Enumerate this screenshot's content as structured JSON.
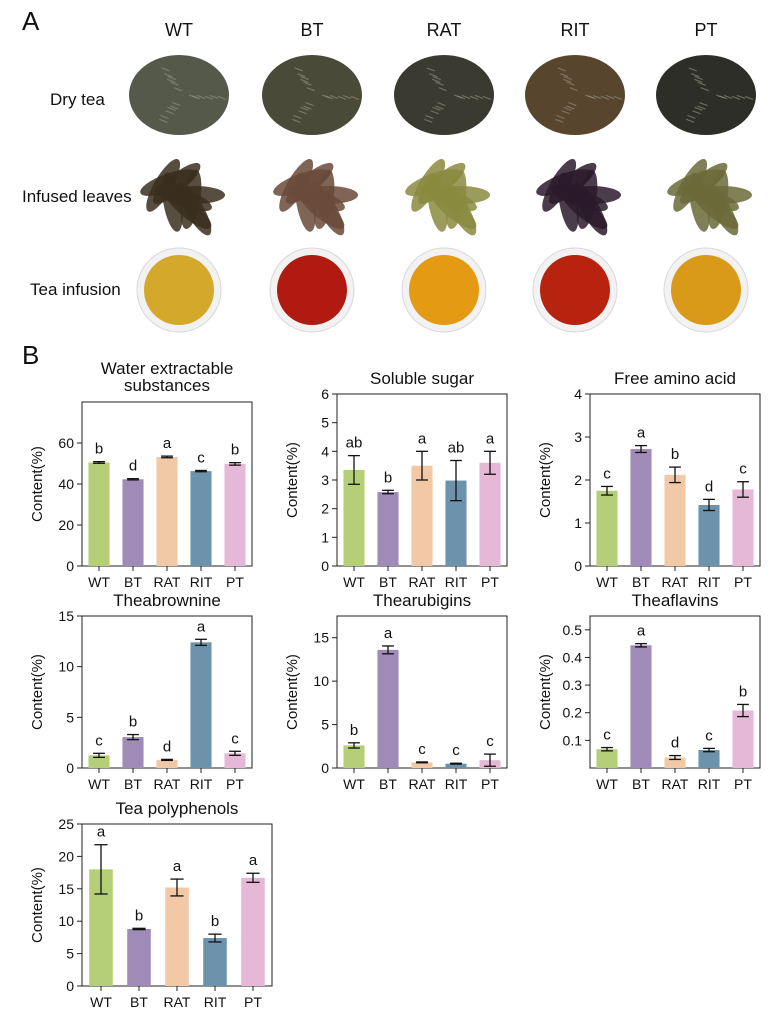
{
  "panel_a": {
    "letter": "A",
    "columns": [
      "WT",
      "BT",
      "RAT",
      "RIT",
      "PT"
    ],
    "rows": [
      "Dry tea",
      "Infused leaves",
      "Tea infusion"
    ],
    "infusion_colors": [
      "#d4a82a",
      "#b01a10",
      "#e49a12",
      "#b8230f",
      "#d99a1a"
    ],
    "dry_colors": [
      "#55594a",
      "#4a4a38",
      "#3a3a30",
      "#57452e",
      "#2e2e28"
    ],
    "leaf_colors": [
      "#3a2e1e",
      "#6a4a3a",
      "#8a8a40",
      "#2a1a2a",
      "#6a6a3a"
    ]
  },
  "panel_b": {
    "letter": "B"
  },
  "bar_colors": [
    "#b5cf79",
    "#9f8ab8",
    "#f2c9a6",
    "#6c93ab",
    "#e6b8d8"
  ],
  "chart_data": [
    {
      "type": "bar",
      "title": [
        "Water extractable",
        "substances"
      ],
      "ylabel": "Content(%)",
      "categories": [
        "WT",
        "BT",
        "RAT",
        "RIT",
        "PT"
      ],
      "values": [
        50.5,
        42.3,
        53.2,
        46.3,
        49.8
      ],
      "errors": [
        0.4,
        0.3,
        0.4,
        0.3,
        0.6
      ],
      "letters": [
        "b",
        "d",
        "a",
        "c",
        "b"
      ],
      "ylim": [
        0,
        80
      ],
      "yticks": [
        "0",
        "20",
        "40",
        "60"
      ]
    },
    {
      "type": "bar",
      "title": [
        "Soluble sugar"
      ],
      "ylabel": "Content(%)",
      "categories": [
        "WT",
        "BT",
        "RAT",
        "RIT",
        "PT"
      ],
      "values": [
        3.35,
        2.58,
        3.5,
        2.98,
        3.6
      ],
      "errors": [
        0.5,
        0.06,
        0.5,
        0.7,
        0.4
      ],
      "letters": [
        "ab",
        "b",
        "a",
        "ab",
        "a"
      ],
      "ylim": [
        0,
        6
      ],
      "yticks": [
        "0",
        "1",
        "2",
        "3",
        "4",
        "5",
        "6"
      ]
    },
    {
      "type": "bar",
      "title": [
        "Free amino acid"
      ],
      "ylabel": "Content(%)",
      "categories": [
        "WT",
        "BT",
        "RAT",
        "RIT",
        "PT"
      ],
      "values": [
        1.75,
        2.72,
        2.12,
        1.42,
        1.78
      ],
      "errors": [
        0.1,
        0.08,
        0.18,
        0.13,
        0.18
      ],
      "letters": [
        "c",
        "a",
        "b",
        "d",
        "c"
      ],
      "ylim": [
        0,
        4
      ],
      "yticks": [
        "0",
        "1",
        "2",
        "3",
        "4"
      ]
    },
    {
      "type": "bar",
      "title": [
        "Theabrownine"
      ],
      "ylabel": "Content(%)",
      "categories": [
        "WT",
        "BT",
        "RAT",
        "RIT",
        "PT"
      ],
      "values": [
        1.25,
        3.05,
        0.8,
        12.4,
        1.45
      ],
      "errors": [
        0.2,
        0.25,
        0.05,
        0.3,
        0.2
      ],
      "letters": [
        "c",
        "b",
        "d",
        "a",
        "c"
      ],
      "ylim": [
        0,
        15
      ],
      "yticks": [
        "0",
        "5",
        "10",
        "15"
      ]
    },
    {
      "type": "bar",
      "title": [
        "Thearubigins"
      ],
      "ylabel": "Content(%)",
      "categories": [
        "WT",
        "BT",
        "RAT",
        "RIT",
        "PT"
      ],
      "values": [
        2.6,
        13.6,
        0.65,
        0.5,
        0.9
      ],
      "errors": [
        0.3,
        0.45,
        0.05,
        0.05,
        0.7
      ],
      "letters": [
        "b",
        "a",
        "c",
        "c",
        "c"
      ],
      "ylim": [
        0,
        17.5
      ],
      "yticks": [
        "0",
        "5",
        "10",
        "15"
      ]
    },
    {
      "type": "bar",
      "title": [
        "Theaflavins"
      ],
      "ylabel": "Content(%)",
      "categories": [
        "WT",
        "BT",
        "RAT",
        "RIT",
        "PT"
      ],
      "values": [
        0.068,
        0.444,
        0.038,
        0.065,
        0.208
      ],
      "errors": [
        0.006,
        0.006,
        0.007,
        0.006,
        0.022
      ],
      "letters": [
        "c",
        "a",
        "d",
        "c",
        "b"
      ],
      "ylim": [
        0,
        0.55
      ],
      "yticks": [
        "0.1",
        "0.2",
        "0.3",
        "0.4",
        "0.5"
      ]
    },
    {
      "type": "bar",
      "title": [
        "Tea polyphenols"
      ],
      "ylabel": "Content(%)",
      "categories": [
        "WT",
        "BT",
        "RAT",
        "RIT",
        "PT"
      ],
      "values": [
        18.0,
        8.8,
        15.2,
        7.4,
        16.7
      ],
      "errors": [
        3.8,
        0.1,
        1.3,
        0.6,
        0.7
      ],
      "letters": [
        "a",
        "b",
        "a",
        "b",
        "a"
      ],
      "ylim": [
        0,
        25
      ],
      "yticks": [
        "0",
        "5",
        "10",
        "15",
        "20",
        "25"
      ]
    }
  ]
}
